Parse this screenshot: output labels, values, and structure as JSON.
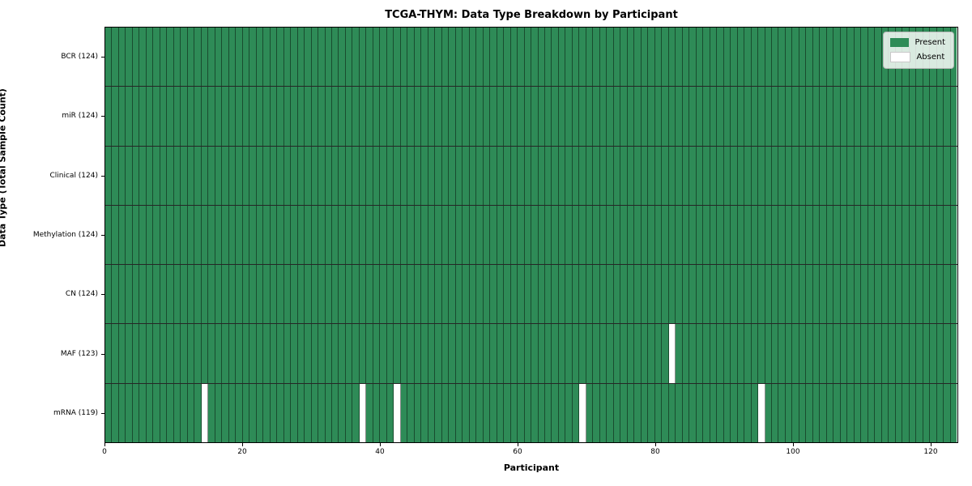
{
  "title": "TCGA-THYM: Data Type Breakdown by Participant",
  "xlabel": "Participant",
  "ylabel": "Data Type (Total Sample Count)",
  "legend": {
    "present_label": "Present",
    "absent_label": "Absent"
  },
  "colors": {
    "present": "#2e8b57",
    "absent": "#ffffff",
    "absent_swatch_edge": "#c8c8c8"
  },
  "chart_data": {
    "type": "heatmap",
    "title": "TCGA-THYM: Data Type Breakdown by Participant",
    "xlabel": "Participant",
    "ylabel": "Data Type (Total Sample Count)",
    "legend": [
      "Present",
      "Absent"
    ],
    "legend_position": "upper right",
    "n_participants": 124,
    "xlim": [
      0,
      124
    ],
    "x_ticks": [
      0,
      20,
      40,
      60,
      80,
      100,
      120
    ],
    "rows": [
      {
        "label": "BCR (124)",
        "data_type": "BCR",
        "present_count": 124,
        "absent_participants": []
      },
      {
        "label": "miR (124)",
        "data_type": "miR",
        "present_count": 124,
        "absent_participants": []
      },
      {
        "label": "Clinical (124)",
        "data_type": "Clinical",
        "present_count": 124,
        "absent_participants": []
      },
      {
        "label": "Methylation (124)",
        "data_type": "Methylation",
        "present_count": 124,
        "absent_participants": []
      },
      {
        "label": "CN (124)",
        "data_type": "CN",
        "present_count": 124,
        "absent_participants": []
      },
      {
        "label": "MAF (123)",
        "data_type": "MAF",
        "present_count": 123,
        "absent_participants": [
          82
        ]
      },
      {
        "label": "mRNA (119)",
        "data_type": "mRNA",
        "present_count": 119,
        "absent_participants": [
          14,
          37,
          42,
          69,
          95
        ]
      }
    ]
  }
}
